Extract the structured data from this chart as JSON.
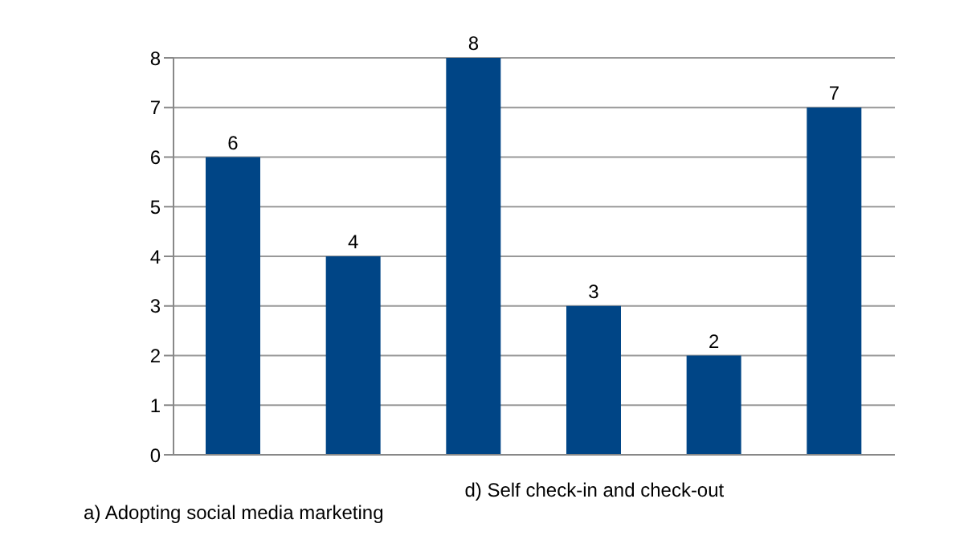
{
  "chart_data": {
    "type": "bar",
    "categories": [
      "a) Adopting social media marketing",
      null,
      null,
      "d) Self check-in and check-out",
      null,
      null
    ],
    "values": [
      6,
      4,
      8,
      3,
      2,
      7
    ],
    "color": "#004586",
    "ylim": [
      0,
      8
    ],
    "yticks": [
      0,
      1,
      2,
      3,
      4,
      5,
      6,
      7,
      8
    ],
    "grid": "y",
    "data_labels": true
  }
}
